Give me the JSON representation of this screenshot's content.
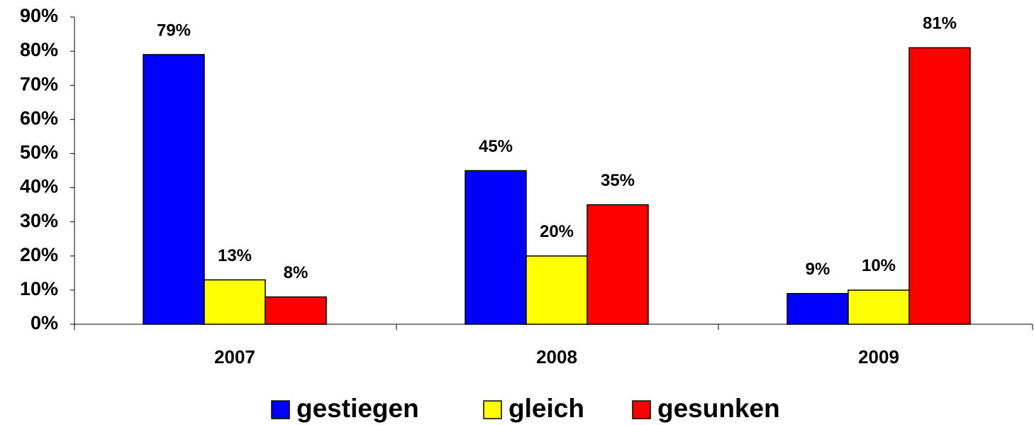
{
  "chart_data": {
    "type": "bar",
    "categories": [
      "2007",
      "2008",
      "2009"
    ],
    "series": [
      {
        "name": "gestiegen",
        "color": "#0000ff",
        "values": [
          79,
          45,
          9
        ],
        "value_labels": [
          "79%",
          "45%",
          "9%"
        ]
      },
      {
        "name": "gleich",
        "color": "#ffff00",
        "values": [
          13,
          20,
          10
        ],
        "value_labels": [
          "13%",
          "20%",
          "10%"
        ]
      },
      {
        "name": "gesunken",
        "color": "#ff0000",
        "values": [
          8,
          35,
          81
        ],
        "value_labels": [
          "8%",
          "35%",
          "81%"
        ]
      }
    ],
    "ylim": [
      0,
      90
    ],
    "yticks": [
      {
        "value": 0,
        "label": "0%"
      },
      {
        "value": 10,
        "label": "10%"
      },
      {
        "value": 20,
        "label": "20%"
      },
      {
        "value": 30,
        "label": "30%"
      },
      {
        "value": 40,
        "label": "40%"
      },
      {
        "value": 50,
        "label": "50%"
      },
      {
        "value": 60,
        "label": "60%"
      },
      {
        "value": 70,
        "label": "70%"
      },
      {
        "value": 80,
        "label": "80%"
      },
      {
        "value": 90,
        "label": "90%"
      }
    ],
    "grid": false,
    "legend": "bottom"
  }
}
